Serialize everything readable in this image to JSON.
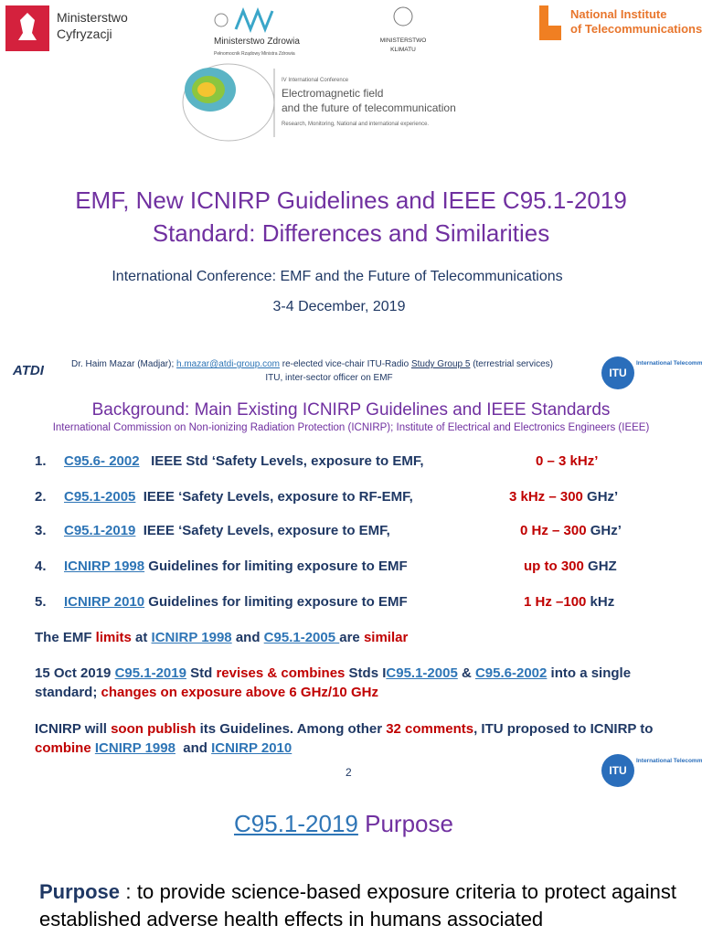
{
  "slide1": {
    "logos": {
      "mc_line1": "Ministerstwo",
      "mc_line2": "Cyfryzacji",
      "mz_name": "Ministerstwo Zdrowia",
      "mz_sub": "Pełnomocnik Rządowy Ministra Zdrowia",
      "mk_line1": "MINISTERSTWO",
      "mk_line2": "KLIMATU",
      "nit_line1": "National Institute",
      "nit_line2": "of Telecommunications"
    },
    "conference_logo": {
      "edition": "IV International Conference",
      "line1": "Electromagnetic field",
      "line2": "and the future of telecommunication",
      "tagline": "Research, Monitoring, National and international experience."
    },
    "title_line1": "EMF, New ICNIRP Guidelines and IEEE C95.1-2019",
    "title_line2": "Standard: Differences and Similarities",
    "conference": "International Conference: EMF and the Future of Telecommunications",
    "date": "3-4 December, 2019"
  },
  "slide2": {
    "atdi_logo": "ATDI",
    "author": [
      {
        "text": "Dr. Haim Mazar (Madjar); ",
        "style": "plain"
      },
      {
        "text": "h.mazar@atdi-group.com",
        "style": "link"
      },
      {
        "text": " re-elected vice-chair ITU-Radio ",
        "style": "plain"
      },
      {
        "text": "Study Group 5",
        "style": "under"
      },
      {
        "text": " (terrestrial services)",
        "style": "plain"
      }
    ],
    "author_line2": "ITU, inter-sector officer on EMF",
    "itu_logo": {
      "abbr": "ITU",
      "name": "International Telecommunication Union"
    },
    "heading": "Background: Main Existing ICNIRP Guidelines and IEEE Standards",
    "subheading": "International Commission on Non-ionizing Radiation Protection (ICNIRP); Institute of Electrical and Electronics Engineers (IEEE)",
    "list": [
      {
        "number": "1.",
        "standard": "C95.6- 2002",
        "description": "   IEEE Std ‘Safety Levels, exposure to EMF,",
        "range": [
          {
            "text": "0 – 3 kHz’",
            "style": "red"
          }
        ]
      },
      {
        "number": "2.",
        "standard": "C95.1-2005",
        "description": "  IEEE ‘Safety Levels, exposure to RF-EMF,",
        "range": [
          {
            "text": "3 kHz – 300",
            "style": "red"
          },
          {
            "text": " GHz’",
            "style": "plain"
          }
        ]
      },
      {
        "number": "3.",
        "standard": "C95.1-2019",
        "description": "  IEEE ‘Safety Levels, exposure to EMF,",
        "range": [
          {
            "text": "0 Hz – 300",
            "style": "red"
          },
          {
            "text": " GHz’",
            "style": "plain"
          }
        ]
      },
      {
        "number": "4.",
        "standard": "ICNIRP 1998",
        "description": " Guidelines for limiting exposure to EMF",
        "range": [
          {
            "text": "up to 300",
            "style": "red"
          },
          {
            "text": " GHZ",
            "style": "plain"
          }
        ]
      },
      {
        "number": "5.",
        "standard": "ICNIRP 2010",
        "description": " Guidelines for limiting exposure to EMF",
        "range": [
          {
            "text": "1 Hz –100",
            "style": "red"
          },
          {
            "text": " kHz",
            "style": "plain"
          }
        ]
      }
    ],
    "paragraphs": [
      [
        {
          "text": "The EMF ",
          "style": "plain"
        },
        {
          "text": "limits",
          "style": "red"
        },
        {
          "text": " at ",
          "style": "plain"
        },
        {
          "text": "ICNIRP 1998",
          "style": "link"
        },
        {
          "text": " and ",
          "style": "plain"
        },
        {
          "text": "C95.1-2005 ",
          "style": "link"
        },
        {
          "text": "are ",
          "style": "plain"
        },
        {
          "text": "similar",
          "style": "red"
        }
      ],
      [
        {
          "text": "15 Oct 2019 ",
          "style": "plain"
        },
        {
          "text": "C95.1-2019",
          "style": "link"
        },
        {
          "text": " Std ",
          "style": "plain"
        },
        {
          "text": "revises & combines",
          "style": "red"
        },
        {
          "text": " Stds I",
          "style": "plain"
        },
        {
          "text": "C95.1-2005",
          "style": "link"
        },
        {
          "text": " & ",
          "style": "plain"
        },
        {
          "text": "C95.6-2002",
          "style": "link"
        },
        {
          "text": " into a single standard; ",
          "style": "plain"
        },
        {
          "text": "changes on exposure above 6 GHz/10 GHz",
          "style": "red"
        }
      ],
      [
        {
          "text": "ICNIRP will ",
          "style": "plain"
        },
        {
          "text": "soon publish",
          "style": "red"
        },
        {
          "text": " its Guidelines. Among other ",
          "style": "plain"
        },
        {
          "text": "32 comments",
          "style": "red"
        },
        {
          "text": ", ITU proposed to ICNIRP to ",
          "style": "plain"
        },
        {
          "text": "combine",
          "style": "red"
        },
        {
          "text": " ",
          "style": "plain"
        },
        {
          "text": "ICNIRP 1998",
          "style": "link"
        },
        {
          "text": "  and ",
          "style": "plain"
        },
        {
          "text": "ICNIRP 2010",
          "style": "link"
        }
      ]
    ],
    "page_number": "2"
  },
  "slide3": {
    "itu_logo": {
      "abbr": "ITU",
      "name": "International Telecommunication Union"
    },
    "title": [
      {
        "text": "C95.1-2019",
        "style": "link"
      },
      {
        "text": " Purpose",
        "style": "plain"
      }
    ],
    "purpose_label": "Purpose",
    "purpose_text": " : to provide science-based exposure criteria to protect against established adverse health effects in humans associated"
  }
}
